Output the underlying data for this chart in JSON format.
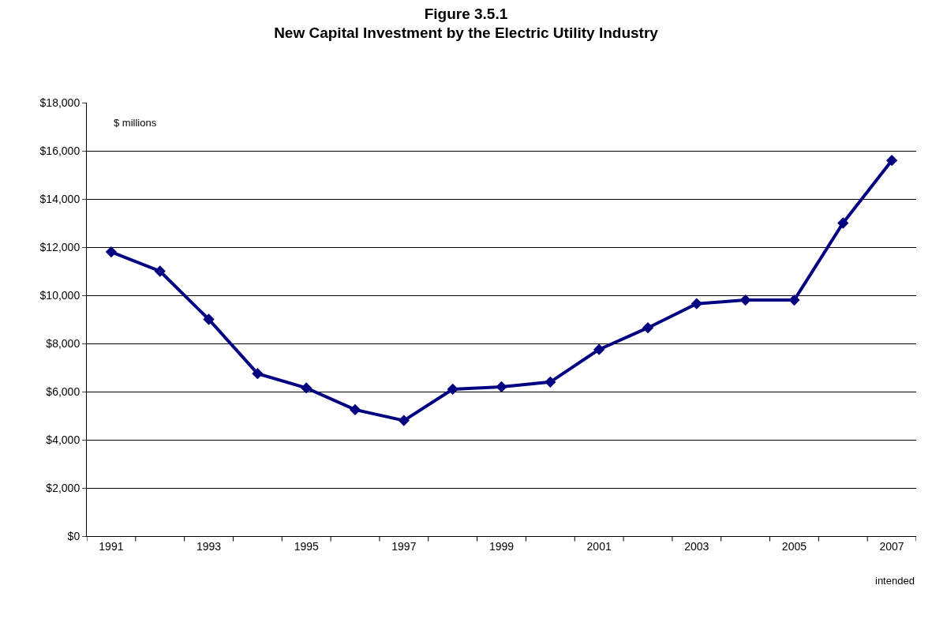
{
  "chart_data": {
    "type": "line",
    "title": "Figure 3.5.1\nNew Capital Investment by the Electric Utility Industry",
    "categories": [
      "1991",
      null,
      "1993",
      null,
      "1995",
      null,
      "1997",
      null,
      "1999",
      null,
      "2001",
      null,
      "2003",
      null,
      "2005",
      null,
      "2007"
    ],
    "series": [
      {
        "color": "#000080",
        "values": [
          11800,
          11000,
          9000,
          6750,
          6150,
          5250,
          4800,
          6100,
          6200,
          6400,
          7750,
          8650,
          9650,
          9800,
          9800,
          13000,
          15600
        ]
      }
    ],
    "ylim": [
      0,
      18000
    ],
    "yticks": [
      {
        "value": 0,
        "label": "$0"
      },
      {
        "value": 2000,
        "label": "$2,000"
      },
      {
        "value": 4000,
        "label": "$4,000"
      },
      {
        "value": 6000,
        "label": "$6,000"
      },
      {
        "value": 8000,
        "label": "$8,000"
      },
      {
        "value": 10000,
        "label": "$10,000"
      },
      {
        "value": 12000,
        "label": "$12,000"
      },
      {
        "value": 14000,
        "label": "$14,000"
      },
      {
        "value": 16000,
        "label": "$16,000"
      },
      {
        "value": 18000,
        "label": "$18,000"
      }
    ],
    "annotations": [
      "$ millions",
      "intended"
    ],
    "grid": "y",
    "marker": "diamond",
    "line_style": "solid"
  }
}
